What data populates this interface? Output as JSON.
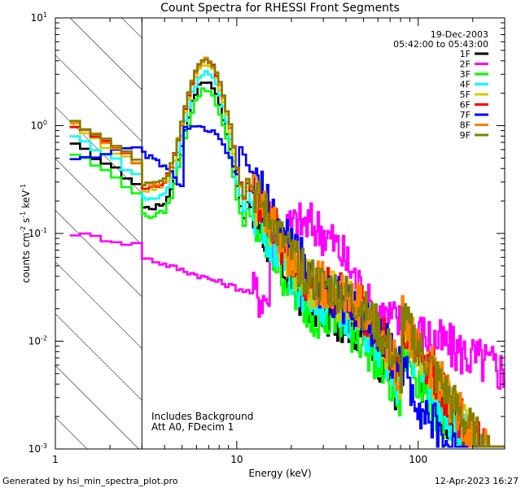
{
  "chart_data": {
    "type": "line",
    "title": "Count Spectra for RHESSI Front Segments",
    "xlabel": "Energy (keV)",
    "ylabel_parts": [
      "counts cm",
      "-2",
      " s",
      "-1",
      " keV",
      "-1"
    ],
    "xscale": "log",
    "yscale": "log",
    "xlim": [
      1,
      300
    ],
    "ylim": [
      0.001,
      10
    ],
    "x_ticks": [
      {
        "value": 1,
        "label": "1"
      },
      {
        "value": 10,
        "label": "10"
      },
      {
        "value": 100,
        "label": "100"
      }
    ],
    "y_ticks": [
      {
        "value": 0.001,
        "base": "10",
        "exp": "-3"
      },
      {
        "value": 0.01,
        "base": "10",
        "exp": "-2"
      },
      {
        "value": 0.1,
        "base": "10",
        "exp": "-1"
      },
      {
        "value": 1,
        "base": "10",
        "exp": "0"
      },
      {
        "value": 10,
        "base": "10",
        "exp": "1"
      }
    ],
    "date": "19-Dec-2003",
    "time_range": "05:42:00 to 05:43:00",
    "hatched_region_kev": [
      1,
      3
    ],
    "annotations": [
      "Includes Background",
      "Att A0, FDecim 1"
    ],
    "footer_left": "Generated by hsi_min_spectra_plot.pro",
    "footer_right": "12-Apr-2023 16:27",
    "series": [
      {
        "name": "1F",
        "color": "#000000",
        "scale": 0.62,
        "noise": 1.1
      },
      {
        "name": "2F",
        "color": "#ff00ff",
        "special": "magenta"
      },
      {
        "name": "3F",
        "color": "#00ff00",
        "scale": 0.52,
        "noise": 1.0
      },
      {
        "name": "4F",
        "color": "#00ffff",
        "scale": 0.75,
        "noise": 1.1
      },
      {
        "name": "5F",
        "color": "#cccc00",
        "scale": 0.9,
        "noise": 1.0
      },
      {
        "name": "6F",
        "color": "#ff0000",
        "scale": 0.97,
        "noise": 1.0
      },
      {
        "name": "7F",
        "color": "#0000ff",
        "special": "blue"
      },
      {
        "name": "8F",
        "color": "#ff8000",
        "scale": 1.0,
        "noise": 1.0
      },
      {
        "name": "9F",
        "color": "#808000",
        "scale": 1.02,
        "noise": 0.9
      }
    ]
  }
}
